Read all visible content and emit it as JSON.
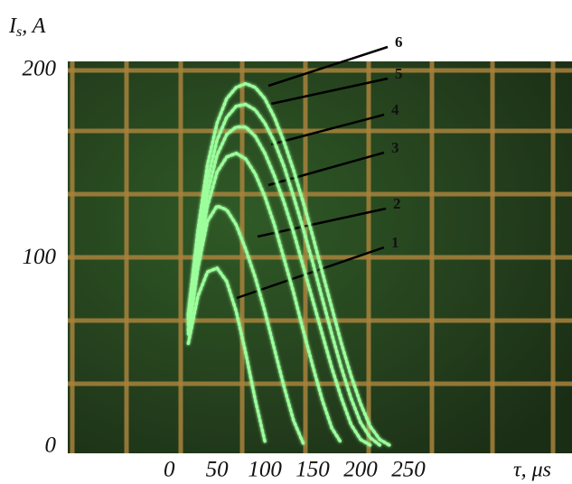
{
  "chart_data": {
    "type": "line",
    "ylabel": [
      "I",
      "s",
      ", A"
    ],
    "xlabel": "τ, μs",
    "xlim": [
      -106,
      421
    ],
    "ylim": [
      0,
      200
    ],
    "xticks": [
      0,
      50,
      100,
      150,
      200,
      250
    ],
    "yticks": [
      0,
      100,
      200
    ],
    "series": [
      {
        "name": "1",
        "color": "#9cff9c",
        "x": [
          20,
          30,
          40,
          50,
          60,
          70,
          80,
          90,
          100
        ],
        "values": [
          55,
          80,
          93,
          95,
          88,
          72,
          50,
          25,
          3
        ]
      },
      {
        "name": "2",
        "color": "#9cff9c",
        "x": [
          20,
          30,
          40,
          50,
          60,
          70,
          80,
          90,
          100,
          110,
          120,
          130,
          140
        ],
        "values": [
          60,
          95,
          120,
          128,
          126,
          118,
          105,
          90,
          72,
          52,
          32,
          14,
          2
        ]
      },
      {
        "name": "3",
        "color": "#9cff9c",
        "x": [
          20,
          30,
          40,
          50,
          60,
          70,
          80,
          90,
          100,
          110,
          120,
          130,
          140,
          150,
          160,
          170,
          180
        ],
        "values": [
          62,
          100,
          128,
          146,
          154,
          156,
          153,
          145,
          133,
          118,
          100,
          82,
          62,
          43,
          25,
          10,
          2
        ]
      },
      {
        "name": "4",
        "color": "#9cff9c",
        "x": [
          20,
          30,
          40,
          50,
          60,
          70,
          80,
          90,
          100,
          110,
          120,
          130,
          140,
          150,
          160,
          170,
          180,
          190,
          200,
          210
        ],
        "values": [
          65,
          105,
          135,
          155,
          166,
          170,
          170,
          165,
          156,
          144,
          130,
          114,
          96,
          78,
          60,
          42,
          26,
          12,
          4,
          1
        ]
      },
      {
        "name": "5",
        "color": "#9cff9c",
        "x": [
          20,
          30,
          40,
          50,
          60,
          70,
          80,
          90,
          100,
          110,
          120,
          130,
          140,
          150,
          160,
          170,
          180,
          190,
          200,
          210,
          220
        ],
        "values": [
          68,
          110,
          142,
          163,
          175,
          181,
          182,
          179,
          172,
          162,
          149,
          133,
          116,
          98,
          79,
          60,
          42,
          26,
          13,
          5,
          1
        ]
      },
      {
        "name": "6",
        "color": "#9cff9c",
        "x": [
          20,
          30,
          40,
          50,
          60,
          70,
          80,
          90,
          100,
          110,
          120,
          130,
          140,
          150,
          160,
          170,
          180,
          190,
          200,
          210,
          220,
          230
        ],
        "values": [
          70,
          115,
          150,
          172,
          185,
          191,
          193,
          191,
          185,
          175,
          162,
          147,
          130,
          112,
          93,
          74,
          55,
          38,
          23,
          11,
          4,
          1
        ]
      }
    ]
  }
}
